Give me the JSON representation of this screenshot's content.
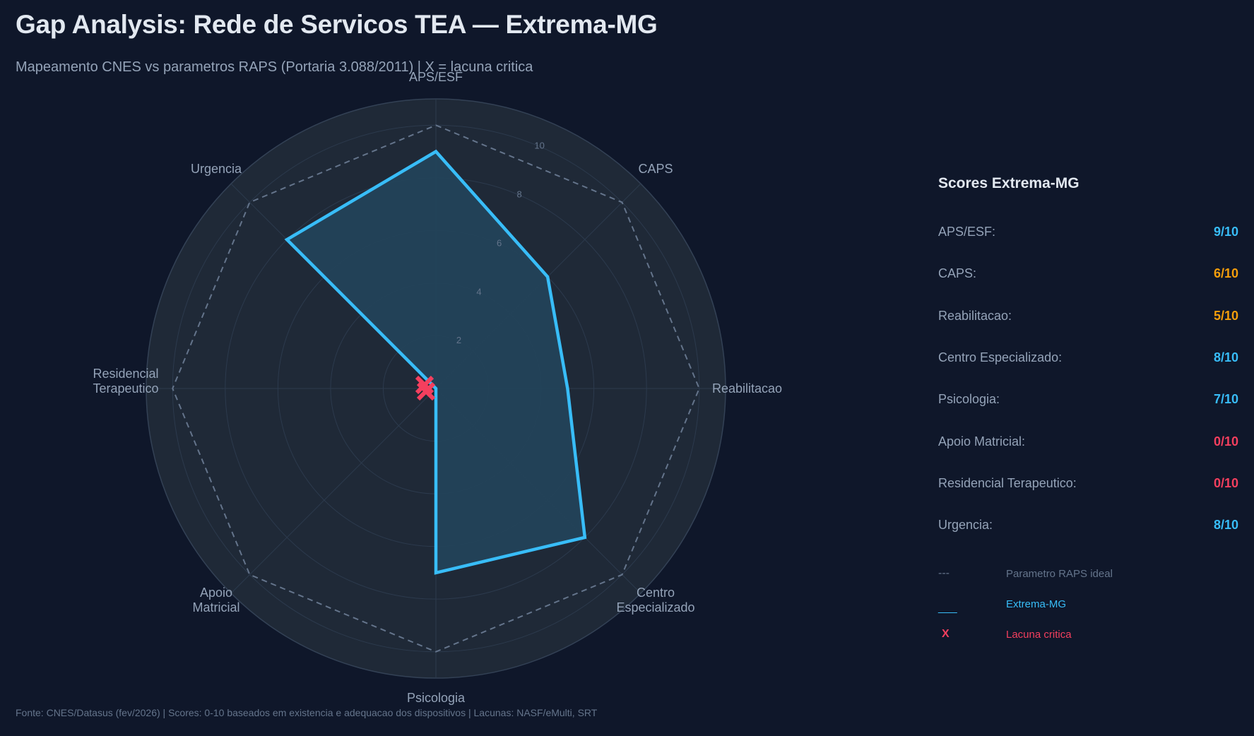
{
  "header": {
    "title": "Gap Analysis: Rede de Servicos TEA — Extrema-MG",
    "subtitle": "Mapeamento CNES vs parametros RAPS (Portaria 3.088/2011) | X = lacuna critica"
  },
  "footer": {
    "text": "Fonte: CNES/Datasus (fev/2026) | Scores: 0-10 baseados em existencia e adequacao dos dispositivos | Lacunas: NASF/eMulti, SRT"
  },
  "colors": {
    "background": "#0f172a",
    "polar_bg": "#1f2937",
    "series": "#38bdf8",
    "fill": "#234259",
    "ideal": "#64748b",
    "gap": "#f43f5e",
    "warn": "#f59e0b"
  },
  "scores_panel": {
    "title": "Scores Extrema-MG",
    "rows": [
      {
        "label": "APS/ESF:",
        "value": "9/10",
        "color": "#38bdf8"
      },
      {
        "label": "CAPS:",
        "value": "6/10",
        "color": "#f59e0b"
      },
      {
        "label": "Reabilitacao:",
        "value": "5/10",
        "color": "#f59e0b"
      },
      {
        "label": "Centro Especializado:",
        "value": "8/10",
        "color": "#38bdf8"
      },
      {
        "label": "Psicologia:",
        "value": "7/10",
        "color": "#38bdf8"
      },
      {
        "label": "Apoio Matricial:",
        "value": "0/10",
        "color": "#f43f5e"
      },
      {
        "label": "Residencial Terapeutico:",
        "value": "0/10",
        "color": "#f43f5e"
      },
      {
        "label": "Urgencia:",
        "value": "8/10",
        "color": "#38bdf8"
      }
    ]
  },
  "legend": [
    {
      "symbol": "---",
      "label": "Parametro RAPS ideal",
      "color": "#64748b"
    },
    {
      "symbol": "___",
      "label": "Extrema-MG",
      "color": "#38bdf8"
    },
    {
      "symbol": "X",
      "label": "Lacuna critica",
      "color": "#f43f5e"
    }
  ],
  "chart_data": {
    "type": "radar",
    "title": "Gap Analysis: Rede de Servicos TEA — Extrema-MG",
    "subtitle": "Mapeamento CNES vs parametros RAPS (Portaria 3.088/2011) | X = lacuna critica",
    "categories": [
      "APS/ESF",
      "CAPS",
      "Reabilitacao",
      "Centro\nEspecializado",
      "Psicologia",
      "Apoio\nMatricial",
      "Residencial\nTerapeutico",
      "Urgencia"
    ],
    "series": [
      {
        "name": "Parametro RAPS ideal",
        "values": [
          10,
          10,
          10,
          10,
          10,
          10,
          10,
          10
        ],
        "style": "dashed"
      },
      {
        "name": "Extrema-MG",
        "values": [
          9,
          6,
          5,
          8,
          7,
          0,
          0,
          8
        ],
        "style": "solid-filled"
      }
    ],
    "critical_gaps": [
      "Apoio Matricial",
      "Residencial Terapeutico"
    ],
    "rticks": [
      2,
      4,
      6,
      8,
      10
    ],
    "rlim": [
      0,
      11
    ],
    "grid": true
  }
}
